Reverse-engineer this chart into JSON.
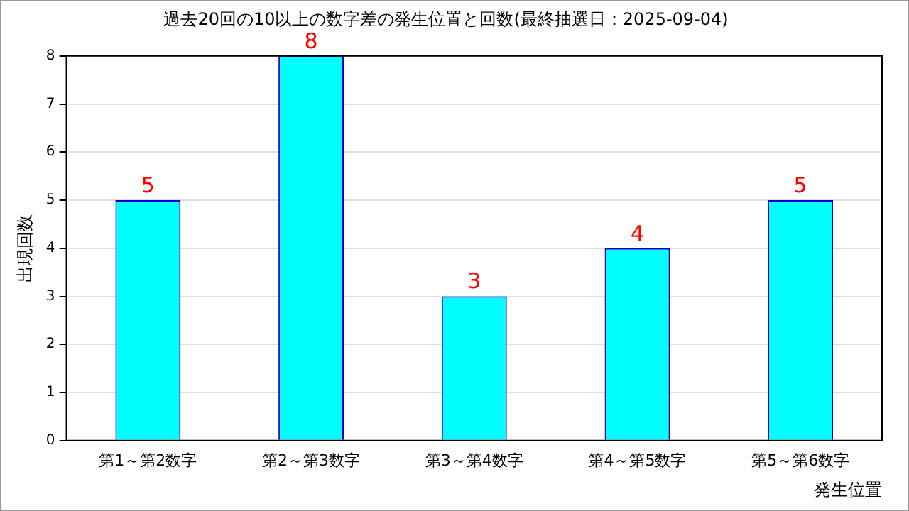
{
  "chart_data": {
    "type": "bar",
    "title": "過去20回の10以上の数字差の発生位置と回数(最終抽選日：2025-09-04)",
    "xlabel": "発生位置",
    "ylabel": "出現回数",
    "categories": [
      "第1～第2数字",
      "第2～第3数字",
      "第3～第4数字",
      "第4～第5数字",
      "第5～第6数字"
    ],
    "series": [
      {
        "color": "#00ffff",
        "values": [
          5,
          8,
          3,
          4,
          5
        ]
      }
    ],
    "ylim": [
      0,
      8
    ],
    "yticks": [
      0,
      1,
      2,
      3,
      4,
      5,
      6,
      7,
      8
    ],
    "grid": "y",
    "legend": false,
    "data_labels": true
  }
}
